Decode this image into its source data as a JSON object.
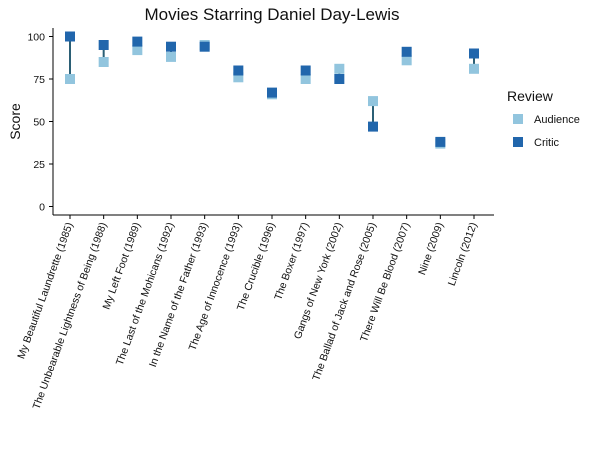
{
  "chart_data": {
    "type": "scatter",
    "title": "Movies Starring Daniel Day-Lewis",
    "xlabel": "",
    "ylabel": "Score",
    "ylim": [
      -5,
      105
    ],
    "yticks": [
      0,
      25,
      50,
      75,
      100
    ],
    "categories": [
      "My Beautiful Laundrette (1985)",
      "The Unbearable Lightness of Being (1988)",
      "My Left Foot (1989)",
      "The Last of the Mohicans (1992)",
      "In the Name of the Father (1993)",
      "The Age of Innocence (1993)",
      "The Crucible (1996)",
      "The Boxer (1997)",
      "Gangs of New York (2002)",
      "The Ballad of Jack and Rose (2005)",
      "There Will Be Blood (2007)",
      "Nine (2009)",
      "Lincoln (2012)"
    ],
    "series": [
      {
        "name": "Audience",
        "color": "#92c5de",
        "values": [
          75,
          85,
          92,
          88,
          95,
          76,
          66,
          75,
          81,
          62,
          86,
          37,
          81
        ]
      },
      {
        "name": "Critic",
        "color": "#2166ac",
        "values": [
          100,
          95,
          97,
          94,
          94,
          80,
          67,
          80,
          75,
          47,
          91,
          38,
          90
        ]
      }
    ],
    "segment_color": "#2b5f75",
    "grid": false,
    "legend": {
      "title": "Review",
      "position": "right"
    }
  }
}
